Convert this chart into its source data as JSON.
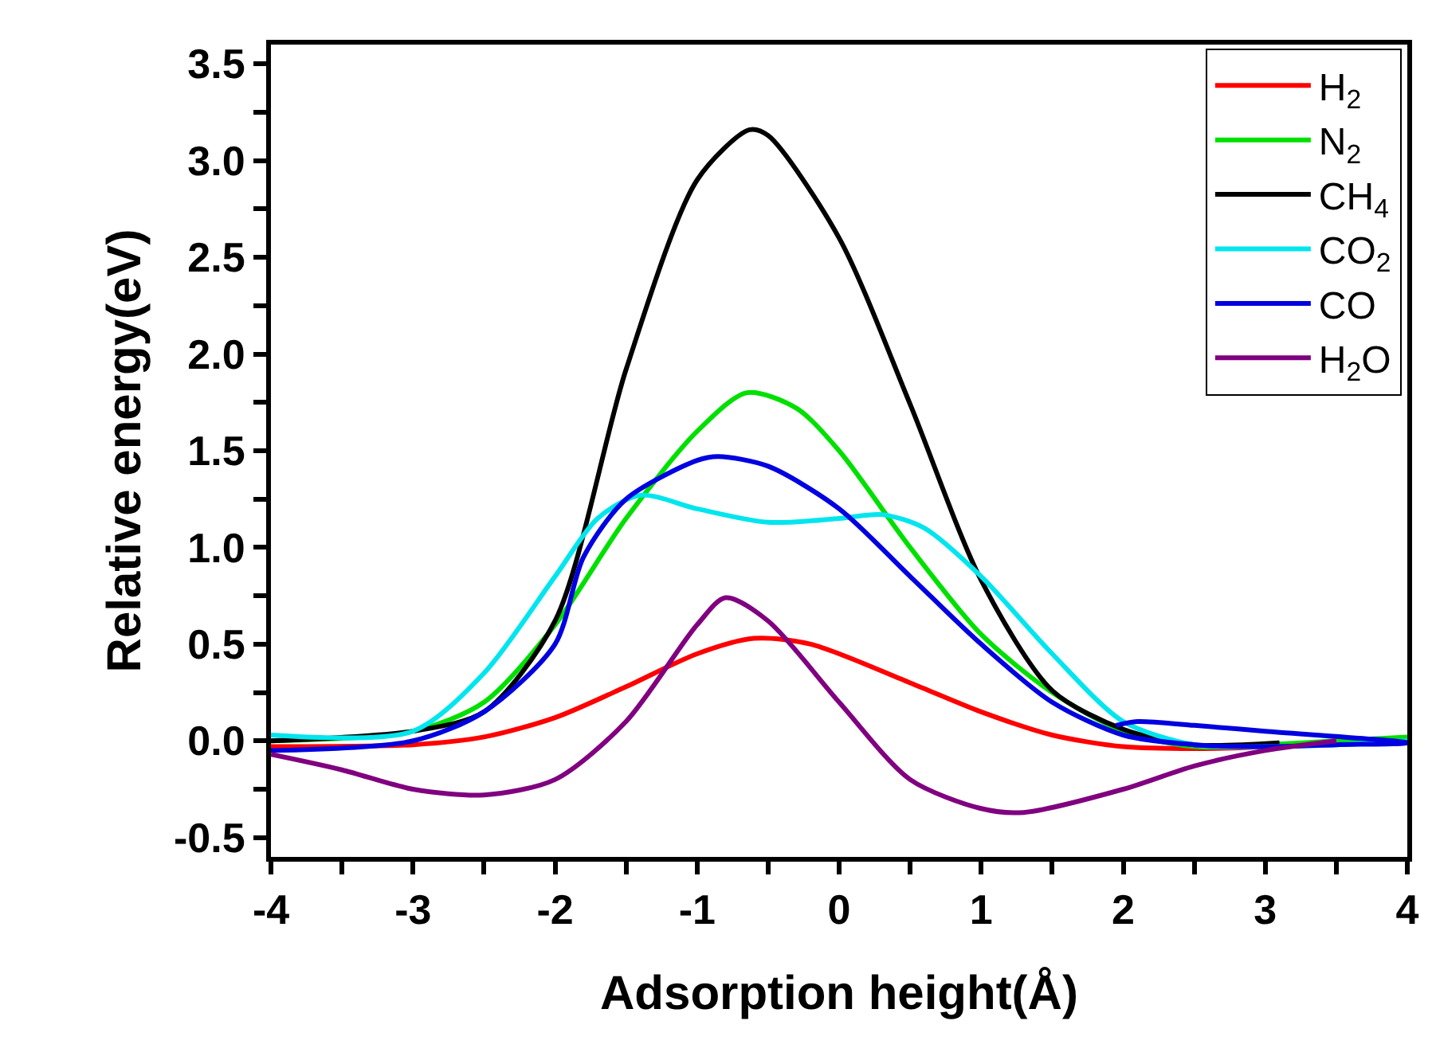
{
  "chart_data": {
    "type": "line",
    "xlabel": "Adsorption height(Å)",
    "ylabel": "Relative energy(eV)",
    "xlim": [
      -4,
      4
    ],
    "xticks": [
      -4,
      {
        "value": -3.5,
        "label": null
      },
      -3,
      {
        "value": -2.5,
        "label": null
      },
      -2,
      {
        "value": -1.5,
        "label": null
      },
      -1,
      {
        "value": -0.5,
        "label": null
      },
      0,
      {
        "value": 0.5,
        "label": null
      },
      1,
      {
        "value": 1.5,
        "label": null
      },
      2,
      {
        "value": 2.5,
        "label": null
      },
      3,
      {
        "value": 3.5,
        "label": null
      },
      4
    ],
    "ylim": [
      -0.6,
      3.6
    ],
    "yticks": [
      {
        "value": -0.5,
        "label": "-0.5"
      },
      {
        "value": -0.25,
        "label": null
      },
      {
        "value": 0,
        "label": "0.0"
      },
      {
        "value": 0.25,
        "label": null
      },
      {
        "value": 0.5,
        "label": "0.5"
      },
      {
        "value": 0.75,
        "label": null
      },
      {
        "value": 1,
        "label": "1.0"
      },
      {
        "value": 1.25,
        "label": null
      },
      {
        "value": 1.5,
        "label": "1.5"
      },
      {
        "value": 1.75,
        "label": null
      },
      {
        "value": 2,
        "label": "2.0"
      },
      {
        "value": 2.25,
        "label": null
      },
      {
        "value": 2.5,
        "label": "2.5"
      },
      {
        "value": 2.75,
        "label": null
      },
      {
        "value": 3,
        "label": "3.0"
      },
      {
        "value": 3.25,
        "label": null
      },
      {
        "value": 3.5,
        "label": "3.5"
      }
    ],
    "legend": "top right",
    "marker": "none",
    "line_style": "solid",
    "series": [
      {
        "name": "H$_{2}$",
        "color": "#ff0000",
        "x": [
          -4,
          -3,
          -2.5,
          -2,
          -1.5,
          -1,
          -0.6,
          -0.2,
          0.5,
          1,
          1.5,
          2,
          2.5,
          3,
          3.5
        ],
        "values": [
          -0.03,
          -0.02,
          0.02,
          0.12,
          0.28,
          0.45,
          0.53,
          0.5,
          0.3,
          0.15,
          0.03,
          -0.03,
          -0.04,
          -0.03,
          0.0
        ]
      },
      {
        "name": "N$_{2}$",
        "color": "#00e000",
        "x": [
          -4,
          -3,
          -2.5,
          -2,
          -1.5,
          -1,
          -0.65,
          -0.3,
          0,
          0.5,
          1,
          1.5,
          2,
          2.5,
          3,
          3.5,
          4
        ],
        "values": [
          0.0,
          0.05,
          0.2,
          0.6,
          1.15,
          1.6,
          1.8,
          1.72,
          1.5,
          1.0,
          0.55,
          0.25,
          0.05,
          -0.03,
          -0.02,
          0.0,
          0.02
        ]
      },
      {
        "name": "CH$_{4}$",
        "color": "#000000",
        "x": [
          -4,
          -3,
          -2.5,
          -2,
          -1.5,
          -1,
          -0.63,
          -0.5,
          0,
          0.5,
          1,
          1.5,
          2,
          2.5,
          3.1
        ],
        "values": [
          0.0,
          0.05,
          0.15,
          0.62,
          1.92,
          2.9,
          3.16,
          3.13,
          2.6,
          1.74,
          0.83,
          0.26,
          0.06,
          -0.02,
          -0.01
        ]
      },
      {
        "name": "CO$_{2}$",
        "color": "#00e5ee",
        "x": [
          -4,
          -3,
          -2.5,
          -2,
          -1.7,
          -1.4,
          -1,
          -0.5,
          0,
          0.3,
          0.6,
          1,
          1.5,
          2,
          2.5,
          3,
          3.5,
          4
        ],
        "values": [
          0.03,
          0.05,
          0.35,
          0.85,
          1.15,
          1.27,
          1.2,
          1.13,
          1.15,
          1.17,
          1.1,
          0.85,
          0.45,
          0.1,
          -0.02,
          -0.03,
          -0.02,
          0.0
        ]
      },
      {
        "name": "CO",
        "color": "#0000e0",
        "x": [
          -4,
          -3,
          -2.5,
          -2,
          -1.8,
          -1.5,
          -1,
          -0.85,
          -0.5,
          0,
          0.5,
          1,
          1.5,
          2,
          2.5,
          3,
          3.5,
          4,
          3,
          2.5,
          2.1,
          1.95
        ],
        "values": [
          -0.05,
          0.0,
          0.15,
          0.5,
          0.95,
          1.25,
          1.45,
          1.47,
          1.42,
          1.2,
          0.85,
          0.5,
          0.2,
          0.03,
          -0.02,
          -0.03,
          -0.02,
          -0.01,
          0.05,
          0.08,
          0.1,
          0.08
        ]
      },
      {
        "name": "H$_{2}$O",
        "color": "#800080",
        "x": [
          -4,
          -3.5,
          -3,
          -2.5,
          -2,
          -1.5,
          -1,
          -0.8,
          -0.5,
          0,
          0.5,
          1,
          1.3,
          2,
          2.5,
          3,
          3.5
        ],
        "values": [
          -0.07,
          -0.15,
          -0.25,
          -0.28,
          -0.2,
          0.1,
          0.6,
          0.74,
          0.62,
          0.2,
          -0.2,
          -0.35,
          -0.37,
          -0.25,
          -0.13,
          -0.05,
          0.0
        ]
      }
    ]
  }
}
